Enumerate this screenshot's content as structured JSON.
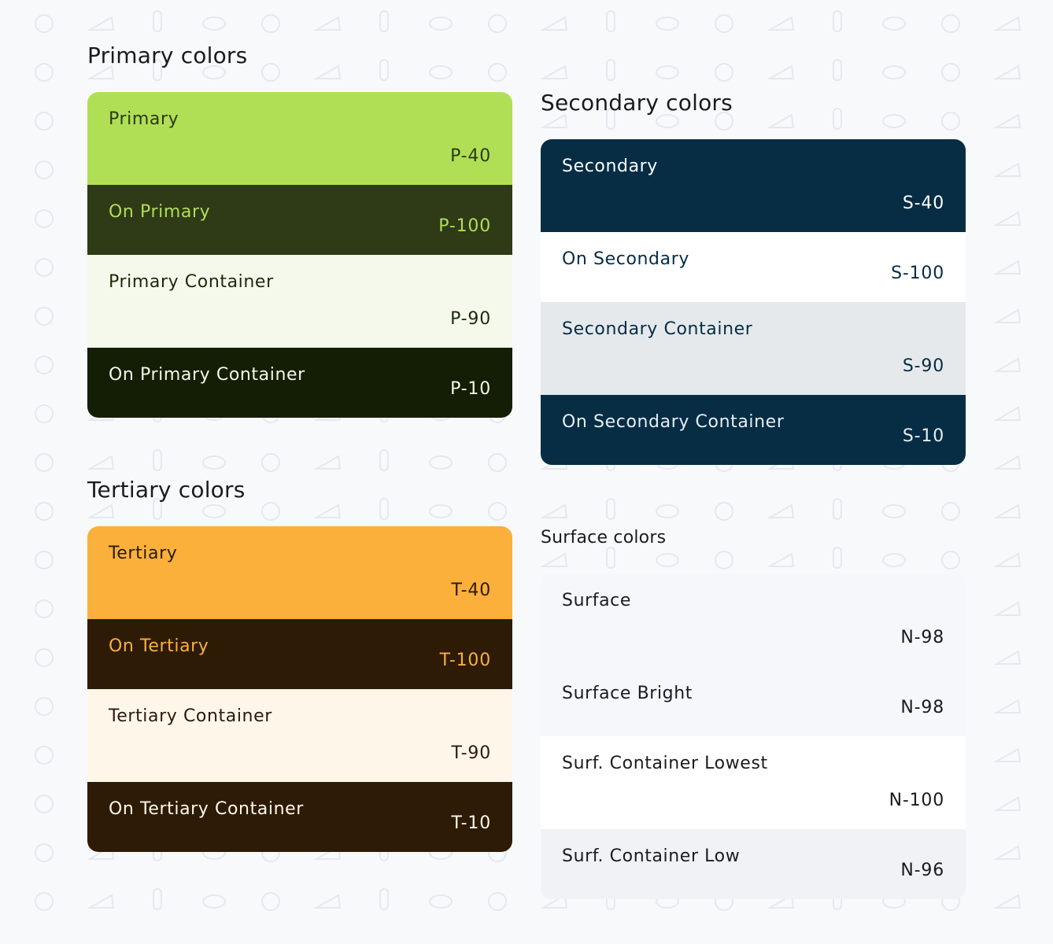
{
  "groups": {
    "primary": {
      "title": "Primary colors",
      "swatches": [
        {
          "label": "Primary",
          "tone": "P-40",
          "bg": "#b0df55",
          "fg": "#2a3a12"
        },
        {
          "label": "On Primary",
          "tone": "P-100",
          "bg": "#2f3a17",
          "fg": "#b0df55"
        },
        {
          "label": "Primary Container",
          "tone": "P-90",
          "bg": "#f5f9ec",
          "fg": "#1c2a0a"
        },
        {
          "label": "On Primary Container",
          "tone": "P-10",
          "bg": "#141e04",
          "fg": "#f3f7ea"
        }
      ]
    },
    "secondary": {
      "title": "Secondary colors",
      "swatches": [
        {
          "label": "Secondary",
          "tone": "S-40",
          "bg": "#062d44",
          "fg": "#ffffff"
        },
        {
          "label": "On Secondary",
          "tone": "S-100",
          "bg": "#ffffff",
          "fg": "#062d44"
        },
        {
          "label": "Secondary Container",
          "tone": "S-90",
          "bg": "#e6e9ec",
          "fg": "#062d44"
        },
        {
          "label": "On Secondary Container",
          "tone": "S-10",
          "bg": "#062d44",
          "fg": "#e6edf2"
        }
      ]
    },
    "tertiary": {
      "title": "Tertiary colors",
      "swatches": [
        {
          "label": "Tertiary",
          "tone": "T-40",
          "bg": "#fbb03b",
          "fg": "#2b1a05"
        },
        {
          "label": "On Tertiary",
          "tone": "T-100",
          "bg": "#2d1b05",
          "fg": "#fbb03b"
        },
        {
          "label": "Tertiary Container",
          "tone": "T-90",
          "bg": "#fff6ea",
          "fg": "#2b1a05"
        },
        {
          "label": "On Tertiary Container",
          "tone": "T-10",
          "bg": "#2d1b05",
          "fg": "#fff6ea"
        }
      ]
    },
    "surface": {
      "title": "Surface colors",
      "swatches": [
        {
          "label": "Surface",
          "tone": "N-98",
          "bg": "#f6f7fa",
          "fg": "#191c1d"
        },
        {
          "label": "Surface Bright",
          "tone": "N-98",
          "bg": "#f6f7fa",
          "fg": "#191c1d"
        },
        {
          "label": "Surf. Container Lowest",
          "tone": "N-100",
          "bg": "#ffffff",
          "fg": "#191c1d"
        },
        {
          "label": "Surf. Container Low",
          "tone": "N-96",
          "bg": "#f0f2f5",
          "fg": "#191c1d"
        }
      ]
    }
  }
}
